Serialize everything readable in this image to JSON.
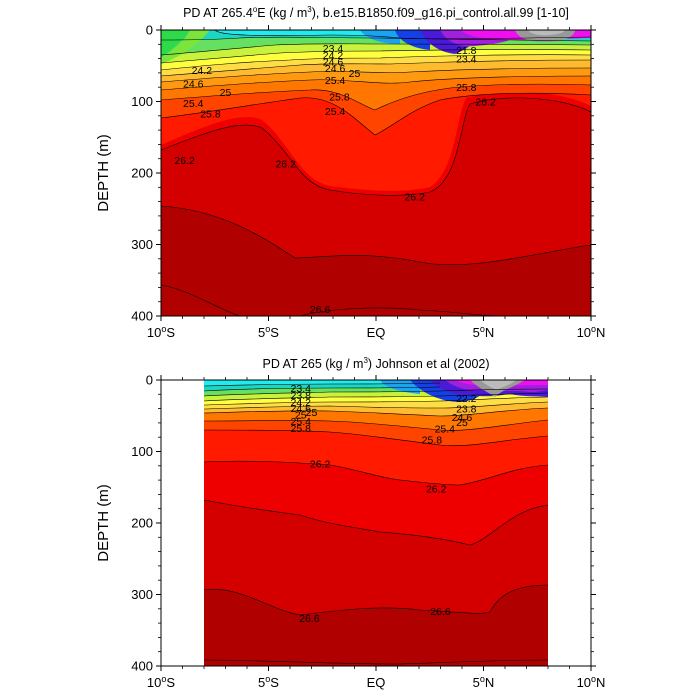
{
  "chart_data": [
    {
      "type": "heatmap",
      "title": "PD AT 265.4°E (kg / m³), b.e15.B1850.f09_g16.pi_control.all.99 [1-10]",
      "title_parts": {
        "pre": "PD AT 265.4",
        "deg": "o",
        "post1": "E (kg / m",
        "sup": "3",
        "post2": "), b.e15.B1850.f09_g16.pi_control.all.99 [1-10]"
      },
      "ylabel": "DEPTH (m)",
      "ylim": [
        400,
        0
      ],
      "xlim": [
        -10,
        10
      ],
      "x_ticks": [
        {
          "value": -10,
          "num": "10",
          "deg": "o",
          "hem": "S"
        },
        {
          "value": -5,
          "num": "5",
          "deg": "o",
          "hem": "S"
        },
        {
          "value": 0,
          "num": "EQ",
          "deg": "",
          "hem": ""
        },
        {
          "value": 5,
          "num": "5",
          "deg": "o",
          "hem": "N"
        },
        {
          "value": 10,
          "num": "10",
          "deg": "o",
          "hem": "N"
        }
      ],
      "y_ticks": [
        0,
        100,
        200,
        300,
        400
      ],
      "data_extent": [
        -10,
        10
      ],
      "contour_labels": [
        {
          "text": "23.4",
          "x": -2.0,
          "y": 25
        },
        {
          "text": "24.2",
          "x": -2.0,
          "y": 35
        },
        {
          "text": "24.6",
          "x": -2.0,
          "y": 44
        },
        {
          "text": "24.2",
          "x": -8.1,
          "y": 56
        },
        {
          "text": "24.6",
          "x": -1.9,
          "y": 53
        },
        {
          "text": "25",
          "x": -1.0,
          "y": 60
        },
        {
          "text": "25",
          "x": -7.0,
          "y": 87
        },
        {
          "text": "24.6",
          "x": -8.5,
          "y": 75
        },
        {
          "text": "25.4",
          "x": -1.9,
          "y": 70
        },
        {
          "text": "25.4",
          "x": -8.5,
          "y": 102
        },
        {
          "text": "25.8",
          "x": -7.7,
          "y": 117
        },
        {
          "text": "25.8",
          "x": -1.7,
          "y": 93
        },
        {
          "text": "25.4",
          "x": -1.9,
          "y": 113
        },
        {
          "text": "21.8",
          "x": 4.2,
          "y": 28
        },
        {
          "text": "23.4",
          "x": 4.2,
          "y": 40
        },
        {
          "text": "25.8",
          "x": 4.2,
          "y": 80
        },
        {
          "text": "26.2",
          "x": 5.1,
          "y": 100
        },
        {
          "text": "26.2",
          "x": -8.9,
          "y": 182
        },
        {
          "text": "26.2",
          "x": -4.2,
          "y": 187
        },
        {
          "text": "26.2",
          "x": 1.8,
          "y": 233
        },
        {
          "text": "26.6",
          "x": -2.6,
          "y": 390
        }
      ],
      "legend": "none"
    },
    {
      "type": "heatmap",
      "title": "PD AT 265 (kg / m³) Johnson et al (2002)",
      "title_parts": {
        "pre": "PD AT 265 (kg / m",
        "sup": "3",
        "post": ") Johnson et al (2002)"
      },
      "ylabel": "DEPTH (m)",
      "ylim": [
        400,
        0
      ],
      "xlim": [
        -10,
        10
      ],
      "x_ticks": [
        {
          "value": -10,
          "num": "10",
          "deg": "o",
          "hem": "S"
        },
        {
          "value": -5,
          "num": "5",
          "deg": "o",
          "hem": "S"
        },
        {
          "value": 0,
          "num": "EQ",
          "deg": "",
          "hem": ""
        },
        {
          "value": 5,
          "num": "5",
          "deg": "o",
          "hem": "N"
        },
        {
          "value": 10,
          "num": "10",
          "deg": "o",
          "hem": "N"
        }
      ],
      "y_ticks": [
        0,
        100,
        200,
        300,
        400
      ],
      "data_extent": [
        -8,
        8
      ],
      "contour_labels": [
        {
          "text": "23.4",
          "x": -3.5,
          "y": 11
        },
        {
          "text": "23.8",
          "x": -3.5,
          "y": 21
        },
        {
          "text": "24.2",
          "x": -3.5,
          "y": 31
        },
        {
          "text": "24.6",
          "x": -3.5,
          "y": 39
        },
        {
          "text": "25",
          "x": -3.0,
          "y": 45
        },
        {
          "text": "25",
          "x": -3.5,
          "y": 48
        },
        {
          "text": "25.4",
          "x": -3.5,
          "y": 57
        },
        {
          "text": "25.8",
          "x": -3.5,
          "y": 67
        },
        {
          "text": "22.2",
          "x": 4.2,
          "y": 25
        },
        {
          "text": "23.8",
          "x": 4.2,
          "y": 40
        },
        {
          "text": "24.6",
          "x": 4.0,
          "y": 52
        },
        {
          "text": "25",
          "x": 4.0,
          "y": 59
        },
        {
          "text": "25.4",
          "x": 3.2,
          "y": 68
        },
        {
          "text": "25.8",
          "x": 2.6,
          "y": 83
        },
        {
          "text": "26.2",
          "x": -2.6,
          "y": 117
        },
        {
          "text": "26.2",
          "x": 2.8,
          "y": 152
        },
        {
          "text": "26.6",
          "x": -3.1,
          "y": 333
        },
        {
          "text": "26.6",
          "x": 3.0,
          "y": 323
        }
      ],
      "legend": "none"
    }
  ]
}
